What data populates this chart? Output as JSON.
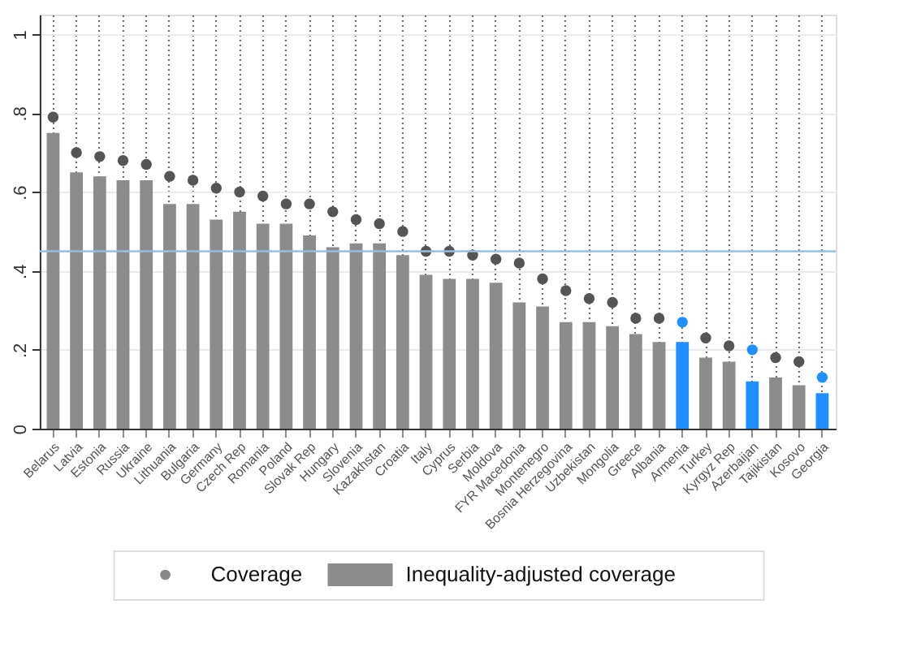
{
  "chart_data": {
    "type": "bar",
    "categories": [
      "Belarus",
      "Latvia",
      "Estonia",
      "Russia",
      "Ukraine",
      "Lithuania",
      "Bulgaria",
      "Germany",
      "Czech Rep",
      "Romania",
      "Poland",
      "Slovak Rep",
      "Hungary",
      "Slovenia",
      "Kazakhstan",
      "Croatia",
      "Italy",
      "Cyprus",
      "Serbia",
      "Moldova",
      "FYR Macedonia",
      "Montenegro",
      "Bosnia Herzegovina",
      "Uzbekistan",
      "Mongolia",
      "Greece",
      "Albania",
      "Armenia",
      "Turkey",
      "Kyrgyz Rep",
      "Azerbaijan",
      "Tajikistan",
      "Kosovo",
      "Georgia"
    ],
    "series": [
      {
        "name": "Coverage",
        "type": "scatter",
        "color": "#555555",
        "colors": [
          "#555555",
          "#555555",
          "#555555",
          "#555555",
          "#555555",
          "#555555",
          "#555555",
          "#555555",
          "#555555",
          "#555555",
          "#555555",
          "#555555",
          "#555555",
          "#555555",
          "#555555",
          "#555555",
          "#555555",
          "#555555",
          "#555555",
          "#555555",
          "#555555",
          "#555555",
          "#555555",
          "#555555",
          "#555555",
          "#555555",
          "#555555",
          "#1e90ff",
          "#555555",
          "#555555",
          "#1e90ff",
          "#555555",
          "#555555",
          "#1e90ff"
        ],
        "values": [
          0.79,
          0.7,
          0.69,
          0.68,
          0.67,
          0.64,
          0.63,
          0.61,
          0.6,
          0.59,
          0.57,
          0.57,
          0.55,
          0.53,
          0.52,
          0.5,
          0.45,
          0.45,
          0.44,
          0.43,
          0.42,
          0.38,
          0.35,
          0.33,
          0.32,
          0.28,
          0.28,
          0.27,
          0.23,
          0.21,
          0.2,
          0.18,
          0.17,
          0.13
        ]
      },
      {
        "name": "Inequality-adjusted coverage",
        "color": "#8c8c8c",
        "colors": [
          "#8c8c8c",
          "#8c8c8c",
          "#8c8c8c",
          "#8c8c8c",
          "#8c8c8c",
          "#8c8c8c",
          "#8c8c8c",
          "#8c8c8c",
          "#8c8c8c",
          "#8c8c8c",
          "#8c8c8c",
          "#8c8c8c",
          "#8c8c8c",
          "#8c8c8c",
          "#8c8c8c",
          "#8c8c8c",
          "#8c8c8c",
          "#8c8c8c",
          "#8c8c8c",
          "#8c8c8c",
          "#8c8c8c",
          "#8c8c8c",
          "#8c8c8c",
          "#8c8c8c",
          "#8c8c8c",
          "#8c8c8c",
          "#8c8c8c",
          "#1e90ff",
          "#8c8c8c",
          "#8c8c8c",
          "#1e90ff",
          "#8c8c8c",
          "#8c8c8c",
          "#1e90ff"
        ],
        "values": [
          0.75,
          0.65,
          0.64,
          0.63,
          0.63,
          0.57,
          0.57,
          0.53,
          0.55,
          0.52,
          0.52,
          0.49,
          0.46,
          0.47,
          0.47,
          0.44,
          0.39,
          0.38,
          0.38,
          0.37,
          0.32,
          0.31,
          0.27,
          0.27,
          0.26,
          0.24,
          0.22,
          0.22,
          0.18,
          0.17,
          0.12,
          0.13,
          0.11,
          0.09
        ]
      }
    ],
    "ylim": [
      0,
      1.05
    ],
    "yticks": [
      0,
      {
        "value": 0.2,
        "label": ".2"
      },
      {
        "value": 0.4,
        "label": ".4"
      },
      {
        "value": 0.6,
        "label": ".6"
      },
      {
        "value": 0.8,
        "label": ".8"
      },
      1
    ],
    "ref_lines": [
      {
        "axis": "y",
        "value": 0.45,
        "color": "#8fc1e3"
      }
    ],
    "grid": true,
    "marker": "circle",
    "legend": "bottom"
  }
}
